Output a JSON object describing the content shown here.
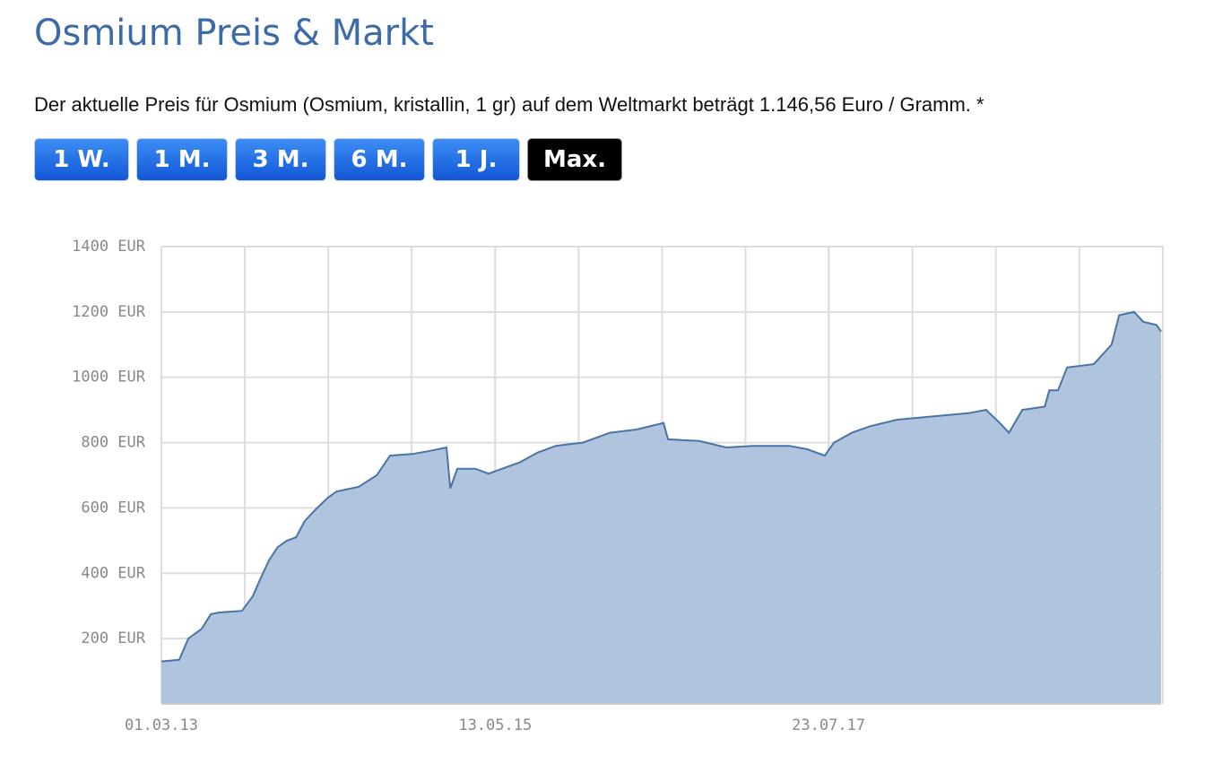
{
  "header": {
    "title": "Osmium Preis & Markt",
    "text": "Der aktuelle Preis für Osmium (Osmium, kristallin, 1 gr) auf dem Weltmarkt beträgt 1.146,56 Euro / Gramm. *"
  },
  "buttons": [
    {
      "label": "1 W."
    },
    {
      "label": "1 M."
    },
    {
      "label": "3 M."
    },
    {
      "label": "6 M."
    },
    {
      "label": "1 J."
    },
    {
      "label": "Max.",
      "active": true
    }
  ],
  "chart_data": {
    "type": "area",
    "color": "#4a74a8",
    "fill": "#b0c4dd",
    "grid": true,
    "x": [
      "01.03.13",
      "13.04.13",
      "05.05.13",
      "06.06.13",
      "28.06.13",
      "19.07.13",
      "11.09.13",
      "07.10.13",
      "24.10.13",
      "15.11.13",
      "06.12.13",
      "28.12.13",
      "19.01.14",
      "09.02.14",
      "03.03.14",
      "04.04.14",
      "26.04.14",
      "19.06.14",
      "01.08.14",
      "02.09.14",
      "26.10.14",
      "08.12.14",
      "16.01.15",
      "25.01.15",
      "11.02.15",
      "26.03.15",
      "27.04.15",
      "30.05.15",
      "12.07.15",
      "24.08.15",
      "06.10.15",
      "10.12.15",
      "13.02.16",
      "17.04.16",
      "21.06.16",
      "02.07.16",
      "15.09.16",
      "19.11.16",
      "23.01.17",
      "19.04.17",
      "01.06.17",
      "14.07.17",
      "05.08.17",
      "17.09.17",
      "30.10.17",
      "03.01.18",
      "30.03.18",
      "24.06.18",
      "06.08.18",
      "08.09.18",
      "30.09.18",
      "01.11.18",
      "25.12.18",
      "05.01.19",
      "26.01.19",
      "17.02.19",
      "22.04.19",
      "04.06.19",
      "22.06.19",
      "28.07.19",
      "19.08.19",
      "20.09.19",
      "01.10.19"
    ],
    "values": [
      130,
      135,
      200,
      230,
      275,
      280,
      285,
      330,
      380,
      440,
      480,
      500,
      510,
      560,
      590,
      630,
      650,
      665,
      700,
      760,
      765,
      775,
      785,
      660,
      720,
      720,
      705,
      720,
      740,
      770,
      790,
      800,
      830,
      840,
      860,
      810,
      805,
      785,
      790,
      790,
      780,
      760,
      800,
      830,
      850,
      870,
      880,
      890,
      900,
      860,
      830,
      900,
      910,
      960,
      960,
      1030,
      1040,
      1100,
      1190,
      1200,
      1170,
      1160,
      1140
    ],
    "xlim": [
      "01.03.13",
      "01.10.19"
    ],
    "xticks": [
      "01.03.13",
      "13.05.15",
      "23.07.17"
    ],
    "ylim": [
      0,
      1400
    ],
    "yticks": [
      {
        "value": 200,
        "label": "200 EUR"
      },
      {
        "value": 400,
        "label": "400 EUR"
      },
      {
        "value": 600,
        "label": "600 EUR"
      },
      {
        "value": 800,
        "label": "800 EUR"
      },
      {
        "value": 1000,
        "label": "1000 EUR"
      },
      {
        "value": 1200,
        "label": "1200 EUR"
      },
      {
        "value": 1400,
        "label": "1400 EUR"
      }
    ]
  }
}
